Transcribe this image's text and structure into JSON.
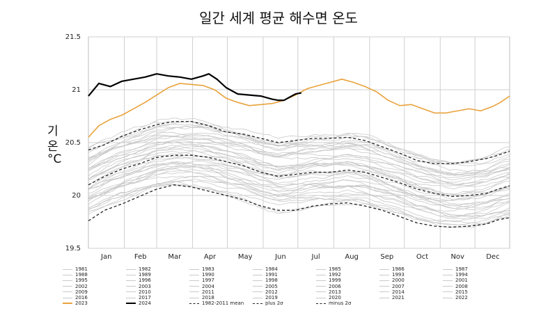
{
  "chart_data": {
    "type": "line",
    "title": "일간 세계 평균 해수면 온도",
    "ylabel_chars": [
      "기",
      "온",
      "°C"
    ],
    "ylim": [
      19.5,
      21.5
    ],
    "yticks": [
      "19.5",
      "20",
      "20.5",
      "21",
      "21.5"
    ],
    "ytick_values": [
      19.5,
      20.0,
      20.5,
      21.0,
      21.5
    ],
    "months": [
      "Jan",
      "Feb",
      "Mar",
      "Apr",
      "May",
      "Jun",
      "Jul",
      "Aug",
      "Sep",
      "Oct",
      "Nov",
      "Dec"
    ],
    "x_unit": "day of year (1-365)",
    "series": [
      {
        "name": "2024",
        "color": "#000000",
        "width": 2.2,
        "points": [
          [
            1,
            20.94
          ],
          [
            10,
            21.06
          ],
          [
            20,
            21.03
          ],
          [
            30,
            21.08
          ],
          [
            40,
            21.1
          ],
          [
            50,
            21.12
          ],
          [
            60,
            21.15
          ],
          [
            70,
            21.13
          ],
          [
            80,
            21.12
          ],
          [
            90,
            21.1
          ],
          [
            100,
            21.13
          ],
          [
            105,
            21.15
          ],
          [
            112,
            21.1
          ],
          [
            120,
            21.02
          ],
          [
            130,
            20.96
          ],
          [
            140,
            20.95
          ],
          [
            150,
            20.94
          ],
          [
            160,
            20.91
          ],
          [
            165,
            20.9
          ],
          [
            170,
            20.9
          ],
          [
            175,
            20.93
          ],
          [
            180,
            20.96
          ],
          [
            185,
            20.97
          ]
        ]
      },
      {
        "name": "2023",
        "color": "#e8a23a",
        "width": 1.6,
        "points": [
          [
            1,
            20.55
          ],
          [
            10,
            20.66
          ],
          [
            20,
            20.72
          ],
          [
            30,
            20.76
          ],
          [
            40,
            20.82
          ],
          [
            50,
            20.88
          ],
          [
            60,
            20.95
          ],
          [
            70,
            21.02
          ],
          [
            80,
            21.06
          ],
          [
            90,
            21.05
          ],
          [
            100,
            21.04
          ],
          [
            110,
            21.0
          ],
          [
            120,
            20.92
          ],
          [
            130,
            20.88
          ],
          [
            140,
            20.85
          ],
          [
            150,
            20.86
          ],
          [
            160,
            20.87
          ],
          [
            170,
            20.9
          ],
          [
            180,
            20.95
          ],
          [
            190,
            21.01
          ],
          [
            200,
            21.04
          ],
          [
            210,
            21.07
          ],
          [
            220,
            21.1
          ],
          [
            230,
            21.07
          ],
          [
            240,
            21.03
          ],
          [
            250,
            20.98
          ],
          [
            260,
            20.9
          ],
          [
            270,
            20.85
          ],
          [
            280,
            20.86
          ],
          [
            290,
            20.82
          ],
          [
            300,
            20.78
          ],
          [
            310,
            20.78
          ],
          [
            320,
            20.8
          ],
          [
            330,
            20.82
          ],
          [
            340,
            20.8
          ],
          [
            350,
            20.84
          ],
          [
            357,
            20.88
          ],
          [
            365,
            20.94
          ]
        ]
      },
      {
        "name": "1982-2011 mean",
        "color": "#222222",
        "width": 1.3,
        "dash": "4,3",
        "points": [
          [
            1,
            20.1
          ],
          [
            15,
            20.18
          ],
          [
            30,
            20.25
          ],
          [
            45,
            20.3
          ],
          [
            60,
            20.36
          ],
          [
            75,
            20.38
          ],
          [
            90,
            20.38
          ],
          [
            105,
            20.36
          ],
          [
            120,
            20.32
          ],
          [
            135,
            20.28
          ],
          [
            150,
            20.22
          ],
          [
            165,
            20.18
          ],
          [
            180,
            20.2
          ],
          [
            195,
            20.22
          ],
          [
            210,
            20.22
          ],
          [
            225,
            20.24
          ],
          [
            240,
            20.22
          ],
          [
            255,
            20.17
          ],
          [
            270,
            20.12
          ],
          [
            285,
            20.06
          ],
          [
            300,
            20.02
          ],
          [
            315,
            19.99
          ],
          [
            330,
            20.0
          ],
          [
            345,
            20.02
          ],
          [
            355,
            20.06
          ],
          [
            365,
            20.09
          ]
        ]
      },
      {
        "name": "plus 2σ",
        "color": "#222222",
        "width": 1.3,
        "dash": "4,3",
        "points": [
          [
            1,
            20.43
          ],
          [
            15,
            20.48
          ],
          [
            30,
            20.56
          ],
          [
            45,
            20.62
          ],
          [
            60,
            20.67
          ],
          [
            75,
            20.7
          ],
          [
            90,
            20.7
          ],
          [
            105,
            20.66
          ],
          [
            120,
            20.6
          ],
          [
            135,
            20.58
          ],
          [
            150,
            20.54
          ],
          [
            165,
            20.5
          ],
          [
            180,
            20.52
          ],
          [
            195,
            20.54
          ],
          [
            210,
            20.54
          ],
          [
            225,
            20.55
          ],
          [
            240,
            20.52
          ],
          [
            255,
            20.46
          ],
          [
            270,
            20.4
          ],
          [
            285,
            20.33
          ],
          [
            300,
            20.3
          ],
          [
            315,
            20.3
          ],
          [
            330,
            20.32
          ],
          [
            345,
            20.35
          ],
          [
            355,
            20.38
          ],
          [
            365,
            20.42
          ]
        ]
      },
      {
        "name": "minus 2σ",
        "color": "#222222",
        "width": 1.3,
        "dash": "4,3",
        "points": [
          [
            1,
            19.76
          ],
          [
            15,
            19.86
          ],
          [
            30,
            19.92
          ],
          [
            45,
            19.99
          ],
          [
            60,
            20.06
          ],
          [
            75,
            20.1
          ],
          [
            90,
            20.08
          ],
          [
            105,
            20.04
          ],
          [
            120,
            20.0
          ],
          [
            135,
            19.96
          ],
          [
            150,
            19.9
          ],
          [
            165,
            19.86
          ],
          [
            180,
            19.86
          ],
          [
            195,
            19.9
          ],
          [
            210,
            19.92
          ],
          [
            225,
            19.93
          ],
          [
            240,
            19.9
          ],
          [
            255,
            19.86
          ],
          [
            270,
            19.8
          ],
          [
            285,
            19.74
          ],
          [
            300,
            19.71
          ],
          [
            315,
            19.7
          ],
          [
            330,
            19.71
          ],
          [
            345,
            19.73
          ],
          [
            355,
            19.77
          ],
          [
            365,
            19.79
          ]
        ]
      }
    ],
    "background_years_color": "#c9c9c9",
    "legend": [
      {
        "label": "1981",
        "style": "grey"
      },
      {
        "label": "1982",
        "style": "grey"
      },
      {
        "label": "1983",
        "style": "grey"
      },
      {
        "label": "1984",
        "style": "grey"
      },
      {
        "label": "1985",
        "style": "grey"
      },
      {
        "label": "1986",
        "style": "grey"
      },
      {
        "label": "1987",
        "style": "grey"
      },
      {
        "label": "1988",
        "style": "grey"
      },
      {
        "label": "1989",
        "style": "grey"
      },
      {
        "label": "1990",
        "style": "grey"
      },
      {
        "label": "1991",
        "style": "grey"
      },
      {
        "label": "1992",
        "style": "grey"
      },
      {
        "label": "1993",
        "style": "grey"
      },
      {
        "label": "1994",
        "style": "grey"
      },
      {
        "label": "1995",
        "style": "grey"
      },
      {
        "label": "1996",
        "style": "grey"
      },
      {
        "label": "1997",
        "style": "grey"
      },
      {
        "label": "1998",
        "style": "grey"
      },
      {
        "label": "1999",
        "style": "grey"
      },
      {
        "label": "2000",
        "style": "grey"
      },
      {
        "label": "2001",
        "style": "grey"
      },
      {
        "label": "2002",
        "style": "grey"
      },
      {
        "label": "2003",
        "style": "grey"
      },
      {
        "label": "2004",
        "style": "grey"
      },
      {
        "label": "2005",
        "style": "grey"
      },
      {
        "label": "2006",
        "style": "grey"
      },
      {
        "label": "2007",
        "style": "grey"
      },
      {
        "label": "2008",
        "style": "grey"
      },
      {
        "label": "2009",
        "style": "grey"
      },
      {
        "label": "2010",
        "style": "grey"
      },
      {
        "label": "2011",
        "style": "grey"
      },
      {
        "label": "2012",
        "style": "grey"
      },
      {
        "label": "2013",
        "style": "grey"
      },
      {
        "label": "2014",
        "style": "grey"
      },
      {
        "label": "2015",
        "style": "grey"
      },
      {
        "label": "2016",
        "style": "grey"
      },
      {
        "label": "2017",
        "style": "grey"
      },
      {
        "label": "2018",
        "style": "grey"
      },
      {
        "label": "2019",
        "style": "grey"
      },
      {
        "label": "2020",
        "style": "grey"
      },
      {
        "label": "2021",
        "style": "grey"
      },
      {
        "label": "2022",
        "style": "grey"
      },
      {
        "label": "2023",
        "style": "orange"
      },
      {
        "label": "2024",
        "style": "black"
      },
      {
        "label": "1982-2011 mean",
        "style": "dash"
      },
      {
        "label": "plus 2σ",
        "style": "dash"
      },
      {
        "label": "minus 2σ",
        "style": "dash"
      }
    ]
  }
}
